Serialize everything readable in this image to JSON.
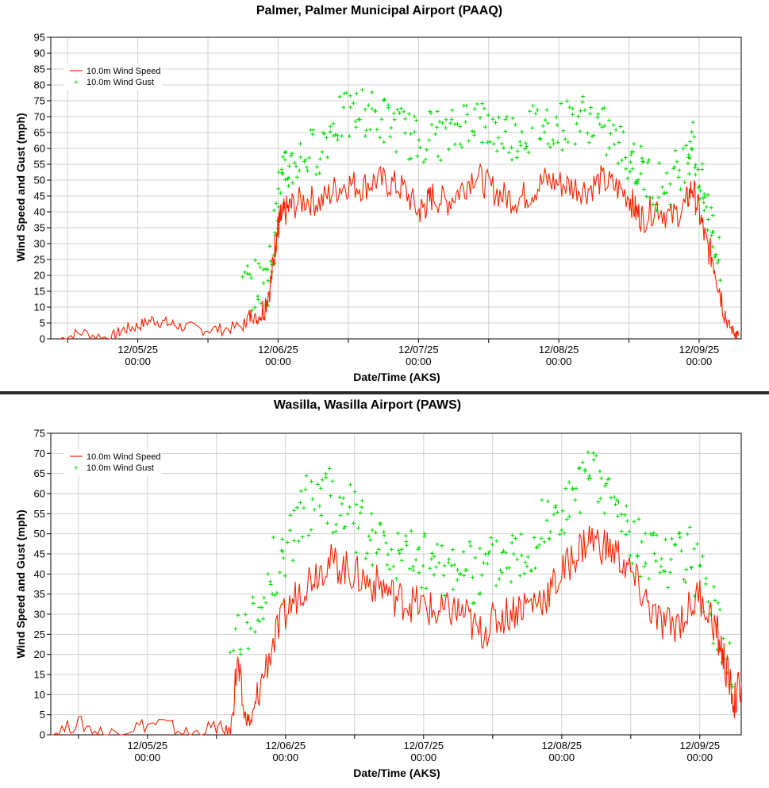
{
  "chart_data": [
    {
      "type": "line",
      "title": "Palmer, Palmer Municipal Airport (PAAQ)",
      "xlabel": "Date/Time (AKS)",
      "ylabel": "Wind Speed and Gust (mph)",
      "ylim": [
        0,
        95
      ],
      "ytick_step": 5,
      "xlim_days": [
        -0.62,
        4.3
      ],
      "x_ticks": [
        {
          "day": 0,
          "date": "12/05/25",
          "time": "00:00"
        },
        {
          "day": 1,
          "date": "12/06/25",
          "time": "00:00"
        },
        {
          "day": 2,
          "date": "12/07/25",
          "time": "00:00"
        },
        {
          "day": 3,
          "date": "12/08/25",
          "time": "00:00"
        },
        {
          "day": 4,
          "date": "12/09/25",
          "time": "00:00"
        }
      ],
      "legend": {
        "position": "top-left",
        "speed_label": "10.0m Wind Speed",
        "gust_label": "10.0m Wind Gust"
      },
      "colors": {
        "speed": "#ff2200",
        "gust": "#00dd00"
      },
      "series": [
        {
          "name": "10.0m Wind Speed",
          "kind": "line",
          "x": [
            -0.55,
            -0.4,
            -0.2,
            -0.1,
            0,
            0.1,
            0.2,
            0.3,
            0.45,
            0.6,
            0.75,
            0.8,
            0.85,
            0.9,
            0.95,
            0.98,
            1.0,
            1.02,
            1.05,
            1.1,
            1.2,
            1.3,
            1.4,
            1.5,
            1.6,
            1.7,
            1.8,
            1.9,
            2.0,
            2.05,
            2.1,
            2.2,
            2.3,
            2.4,
            2.5,
            2.6,
            2.7,
            2.8,
            2.9,
            3.0,
            3.1,
            3.2,
            3.3,
            3.4,
            3.5,
            3.55,
            3.6,
            3.7,
            3.8,
            3.9,
            3.95,
            4.0,
            4.05,
            4.1,
            4.15,
            4.2,
            4.25,
            4.28
          ],
          "y": [
            0,
            2,
            0,
            3,
            4,
            6,
            5,
            4,
            3,
            3,
            4,
            8,
            6,
            10,
            18,
            30,
            35,
            38,
            40,
            42,
            44,
            43,
            47,
            49,
            48,
            50,
            49,
            47,
            40,
            42,
            45,
            43,
            47,
            52,
            48,
            45,
            44,
            46,
            50,
            49,
            48,
            47,
            50,
            48,
            45,
            40,
            38,
            42,
            38,
            42,
            48,
            40,
            30,
            25,
            15,
            5,
            2,
            1
          ]
        },
        {
          "name": "10.0m Wind Gust",
          "kind": "scatter",
          "x": [
            0.75,
            0.85,
            0.92,
            0.97,
            1.0,
            1.05,
            1.1,
            1.2,
            1.3,
            1.4,
            1.5,
            1.6,
            1.7,
            1.8,
            1.9,
            2.0,
            2.1,
            2.2,
            2.3,
            2.4,
            2.5,
            2.6,
            2.7,
            2.8,
            2.9,
            3.0,
            3.1,
            3.2,
            3.3,
            3.4,
            3.5,
            3.55,
            3.6,
            3.7,
            3.8,
            3.9,
            3.95,
            4.0,
            4.05,
            4.1,
            4.15
          ],
          "y": [
            17,
            17,
            17,
            30,
            45,
            52,
            55,
            58,
            60,
            68,
            70,
            72,
            70,
            68,
            65,
            62,
            66,
            63,
            68,
            70,
            66,
            65,
            64,
            66,
            68,
            67,
            69,
            70,
            66,
            62,
            58,
            55,
            52,
            48,
            50,
            56,
            65,
            50,
            42,
            35,
            20
          ]
        }
      ]
    },
    {
      "type": "line",
      "title": "Wasilla, Wasilla Airport (PAWS)",
      "xlabel": "Date/Time (AKS)",
      "ylabel": "Wind Speed and Gust (mph)",
      "ylim": [
        0,
        75
      ],
      "ytick_step": 5,
      "xlim_days": [
        -0.7,
        4.3
      ],
      "x_ticks": [
        {
          "day": 0,
          "date": "12/05/25",
          "time": "00:00"
        },
        {
          "day": 1,
          "date": "12/06/25",
          "time": "00:00"
        },
        {
          "day": 2,
          "date": "12/07/25",
          "time": "00:00"
        },
        {
          "day": 3,
          "date": "12/08/25",
          "time": "00:00"
        },
        {
          "day": 4,
          "date": "12/09/25",
          "time": "00:00"
        }
      ],
      "legend": {
        "position": "top-left",
        "speed_label": "10.0m Wind Speed",
        "gust_label": "10.0m Wind Gust"
      },
      "colors": {
        "speed": "#ff2200",
        "gust": "#00dd00"
      },
      "series": [
        {
          "name": "10.0m Wind Speed",
          "kind": "line",
          "x": [
            -0.7,
            -0.5,
            -0.3,
            -0.1,
            0.1,
            0.3,
            0.5,
            0.6,
            0.65,
            0.7,
            0.75,
            0.8,
            0.9,
            1.0,
            1.1,
            1.2,
            1.3,
            1.4,
            1.5,
            1.6,
            1.7,
            1.8,
            1.9,
            2.0,
            2.1,
            2.2,
            2.3,
            2.4,
            2.5,
            2.6,
            2.7,
            2.8,
            2.9,
            3.0,
            3.1,
            3.2,
            3.3,
            3.4,
            3.5,
            3.6,
            3.7,
            3.8,
            3.9,
            4.0,
            4.1,
            4.15,
            4.2,
            4.25,
            4.3
          ],
          "y": [
            0,
            3,
            0,
            2,
            3,
            0,
            2,
            0,
            18,
            5,
            3,
            10,
            22,
            30,
            36,
            40,
            43,
            42,
            40,
            38,
            37,
            34,
            33,
            32,
            30,
            31,
            30,
            25,
            28,
            30,
            32,
            33,
            35,
            40,
            45,
            49,
            47,
            45,
            40,
            34,
            28,
            27,
            30,
            35,
            28,
            22,
            15,
            8,
            13
          ]
        },
        {
          "name": "10.0m Wind Gust",
          "kind": "scatter",
          "x": [
            0.6,
            0.75,
            0.85,
            0.95,
            1.05,
            1.15,
            1.25,
            1.35,
            1.45,
            1.55,
            1.65,
            1.75,
            1.85,
            1.95,
            2.05,
            2.15,
            2.25,
            2.35,
            2.45,
            2.55,
            2.65,
            2.75,
            2.85,
            2.95,
            3.05,
            3.15,
            3.25,
            3.35,
            3.45,
            3.55,
            3.65,
            3.75,
            3.85,
            3.95,
            4.05,
            4.15,
            4.25
          ],
          "y": [
            23,
            28,
            36,
            44,
            50,
            56,
            62,
            58,
            55,
            52,
            50,
            46,
            45,
            44,
            42,
            42,
            44,
            40,
            42,
            45,
            46,
            48,
            50,
            54,
            58,
            62,
            64,
            60,
            54,
            48,
            43,
            41,
            43,
            44,
            35,
            25,
            18
          ]
        }
      ]
    }
  ]
}
